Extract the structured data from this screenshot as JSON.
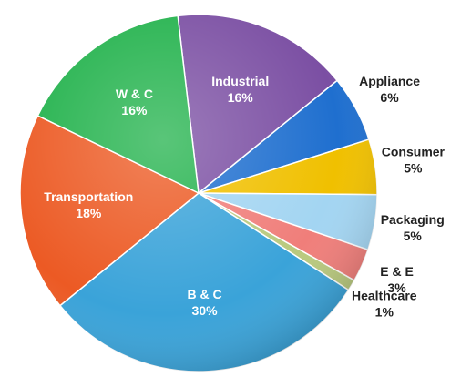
{
  "chart_data": {
    "type": "pie",
    "categories": [
      "Industrial",
      "Appliance",
      "Consumer",
      "Packaging",
      "E & E",
      "Healthcare",
      "B & C",
      "Transportation",
      "W & C"
    ],
    "values": [
      16,
      6,
      5,
      5,
      3,
      1,
      30,
      18,
      16
    ],
    "value_labels": [
      "16%",
      "6%",
      "5%",
      "5%",
      "3%",
      "1%",
      "30%",
      "18%",
      "16%"
    ],
    "colors": [
      "#7b4fa3",
      "#1f6fcf",
      "#f0c000",
      "#a3d5f2",
      "#f07e7a",
      "#b9c97e",
      "#3aa3d9",
      "#ec5a24",
      "#22b24c"
    ]
  }
}
